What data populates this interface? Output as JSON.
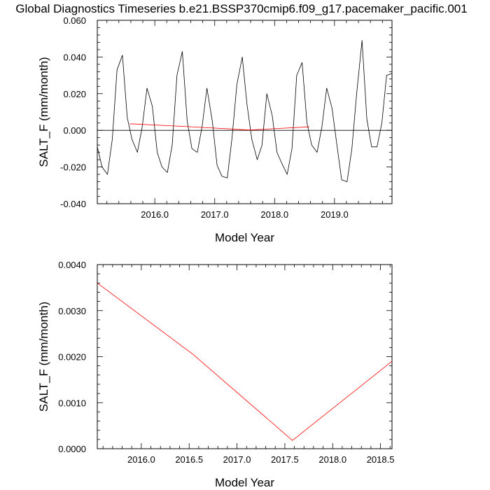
{
  "figure_title": "Global Diagnostics Timeseries b.e21.BSSP370cmip6.f09_g17.pacemaker_pacific.001",
  "chart_data": [
    {
      "type": "line",
      "title": "Global Diagnostics Timeseries b.e21.BSSP370cmip6.f09_g17.pacemaker_pacific.001",
      "xlabel": "Model Year",
      "ylabel": "SALT_F (mm/month)",
      "xlim": [
        2015.04,
        2019.96
      ],
      "ylim": [
        -0.04,
        0.06
      ],
      "xticks": [
        2016.0,
        2017.0,
        2018.0,
        2019.0
      ],
      "xtick_labels": [
        "2016.0",
        "2017.0",
        "2018.0",
        "2019.0"
      ],
      "yticks": [
        -0.04,
        -0.02,
        0.0,
        0.02,
        0.04,
        0.06
      ],
      "ytick_labels": [
        "-0.040",
        "-0.020",
        "0.000",
        "0.020",
        "0.040",
        "0.060"
      ],
      "reference_line": 0.0,
      "series": [
        {
          "color": "#000000",
          "x": [
            2015.04,
            2015.12,
            2015.21,
            2015.29,
            2015.37,
            2015.46,
            2015.54,
            2015.62,
            2015.71,
            2015.79,
            2015.87,
            2015.96,
            2016.04,
            2016.12,
            2016.21,
            2016.29,
            2016.37,
            2016.46,
            2016.54,
            2016.62,
            2016.71,
            2016.79,
            2016.87,
            2016.96,
            2017.04,
            2017.12,
            2017.21,
            2017.29,
            2017.37,
            2017.46,
            2017.54,
            2017.62,
            2017.71,
            2017.79,
            2017.87,
            2017.96,
            2018.04,
            2018.12,
            2018.21,
            2018.29,
            2018.37,
            2018.46,
            2018.54,
            2018.62,
            2018.71,
            2018.79,
            2018.87,
            2018.96,
            2019.04,
            2019.12,
            2019.21,
            2019.29,
            2019.37,
            2019.46,
            2019.54,
            2019.62,
            2019.71,
            2019.79,
            2019.87,
            2019.96
          ],
          "y": [
            -0.009,
            -0.02,
            -0.024,
            -0.005,
            0.033,
            0.041,
            0.007,
            -0.005,
            -0.012,
            0.002,
            0.023,
            0.013,
            -0.012,
            -0.02,
            -0.023,
            -0.008,
            0.03,
            0.043,
            0.005,
            -0.01,
            -0.012,
            0.002,
            0.023,
            0.005,
            -0.019,
            -0.025,
            -0.026,
            -0.004,
            0.025,
            0.04,
            0.014,
            -0.005,
            -0.016,
            -0.008,
            0.02,
            0.008,
            -0.012,
            -0.018,
            -0.024,
            -0.01,
            0.03,
            0.037,
            0.004,
            -0.008,
            -0.012,
            0.002,
            0.023,
            0.012,
            -0.008,
            -0.027,
            -0.028,
            -0.01,
            0.02,
            0.049,
            0.006,
            -0.009,
            -0.009,
            0.004,
            0.03,
            0.031
          ]
        },
        {
          "color": "#ff0000",
          "x": [
            2015.58,
            2016.58,
            2017.58,
            2018.58
          ],
          "y": [
            0.0036,
            0.002,
            0.0002,
            0.0019
          ]
        }
      ]
    },
    {
      "type": "line",
      "xlabel": "Model Year",
      "ylabel": "SALT_F (mm/month)",
      "xlim": [
        2015.54,
        2018.62
      ],
      "ylim": [
        0.0,
        0.004
      ],
      "xticks": [
        2016.0,
        2016.5,
        2017.0,
        2017.5,
        2018.0,
        2018.5
      ],
      "xtick_labels": [
        "2016.0",
        "2016.5",
        "2017.0",
        "2017.5",
        "2018.0",
        "2018.5"
      ],
      "yticks": [
        0.0,
        0.001,
        0.002,
        0.003,
        0.004
      ],
      "ytick_labels": [
        "0.0000",
        "0.0010",
        "0.0020",
        "0.0030",
        "0.0040"
      ],
      "series": [
        {
          "color": "#ff0000",
          "x": [
            2015.54,
            2016.54,
            2017.58,
            2018.62
          ],
          "y": [
            0.0036,
            0.00205,
            0.00018,
            0.0019
          ]
        }
      ]
    }
  ]
}
